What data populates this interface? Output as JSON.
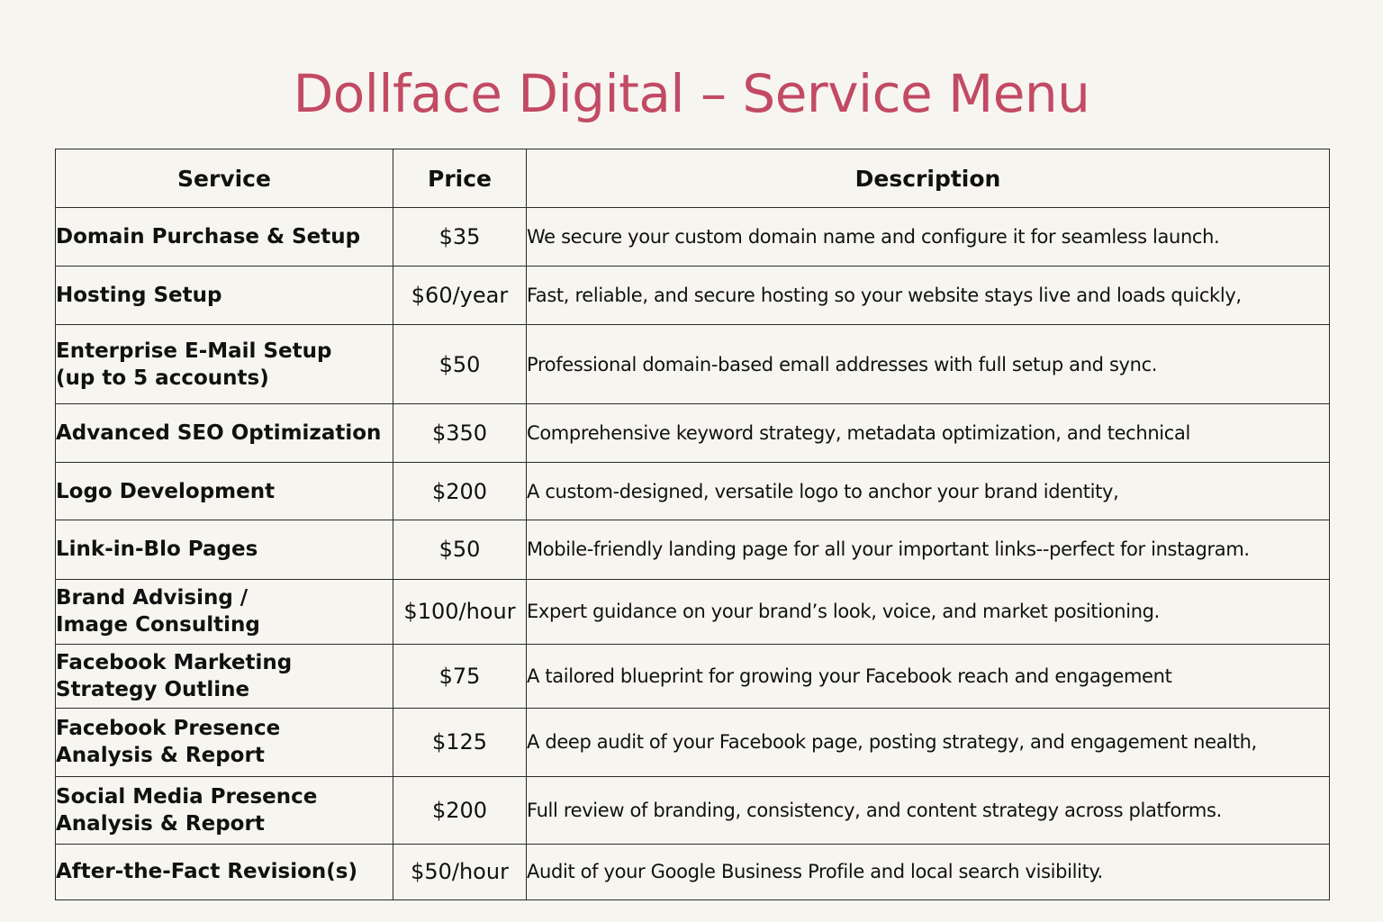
{
  "title": "Dollface Digital – Service Menu",
  "colors": {
    "title": "#c24a64",
    "background": "#f7f5f0",
    "border": "#2a2a2a"
  },
  "table": {
    "headers": {
      "service": "Service",
      "price": "Price",
      "description": "Description"
    },
    "rows": [
      {
        "service": "Domain Purchase & Setup",
        "service_line2": "",
        "price": "$35",
        "description": "We secure your custom domain name and configure it for seamless launch."
      },
      {
        "service": "Hosting Setup",
        "service_line2": "",
        "price": "$60/year",
        "description": "Fast, reliable, and secure hosting so your website stays live and loads quickly,"
      },
      {
        "service": "Enterprise E-Mail Setup",
        "service_line2": "(up to 5 accounts)",
        "price": "$50",
        "description": "Professional domain-based emall addresses with full setup and sync."
      },
      {
        "service": "Advanced SEO Optimization",
        "service_line2": "",
        "price": "$350",
        "description": "Comprehensive keyword strategy, metadata optimization, and technical"
      },
      {
        "service": "Logo Development",
        "service_line2": "",
        "price": "$200",
        "description": "A custom-designed, versatile logo to anchor your brand identity,"
      },
      {
        "service": "Link-in-Blo Pages",
        "service_line2": "",
        "price": "$50",
        "description": "Mobile-friendly landing page for all your important links--perfect for instagram."
      },
      {
        "service": "Brand Advising /",
        "service_line2": "Image Consulting",
        "price": "$100/hour",
        "description": "Expert guidance on your brand’s look, voice, and market positioning."
      },
      {
        "service": "Facebook Marketing",
        "service_line2": "Strategy Outline",
        "price": "$75",
        "description": "A tailored blueprint for growing your Facebook reach and engagement"
      },
      {
        "service": "Facebook Presence",
        "service_line2": "Analysis & Report",
        "price": "$125",
        "description": "A deep audit of your Facebook page, posting strategy, and engagement nealth,"
      },
      {
        "service": "Social Media Presence",
        "service_line2": "Analysis & Report",
        "price": "$200",
        "description": "Full review of branding, consistency, and content strategy across platforms."
      },
      {
        "service": "After-the-Fact Revision(s)",
        "service_line2": "",
        "price": "$50/hour",
        "description": "Audit of your Google Business Profile and local search visibility."
      }
    ]
  }
}
